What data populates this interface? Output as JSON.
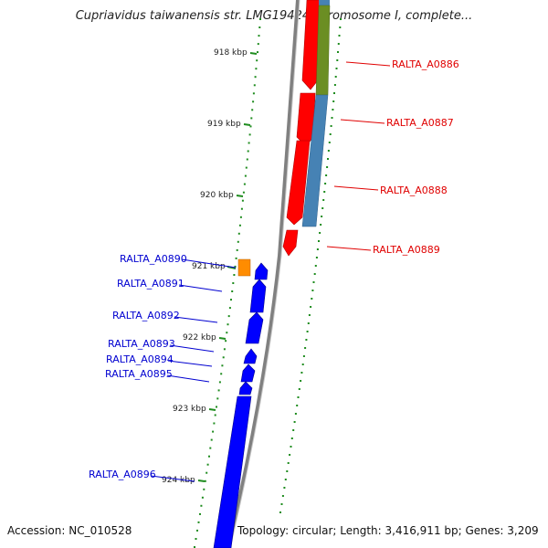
{
  "header": {
    "title": "Cupriavidus taiwanensis str. LMG19424 chromosome I, complete..."
  },
  "footer": {
    "accession": "Accession: NC_010528",
    "topology": "Topology: circular; Length: 3,416,911 bp; Genes: 3,209"
  },
  "map": {
    "ticks": [
      "918 kbp",
      "919 kbp",
      "920 kbp",
      "921 kbp",
      "922 kbp",
      "923 kbp",
      "924 kbp"
    ],
    "forward_genes": [
      "RALTA_A0886",
      "RALTA_A0887",
      "RALTA_A0888",
      "RALTA_A0889"
    ],
    "reverse_genes": [
      "RALTA_A0890",
      "RALTA_A0891",
      "RALTA_A0892",
      "RALTA_A0893",
      "RALTA_A0894",
      "RALTA_A0895",
      "RALTA_A0896"
    ]
  },
  "colors": {
    "forward_cds": "#ff0000",
    "reverse_cds": "#0000ff",
    "cog_green": "#6b8e23",
    "cog_blue": "#4682b4",
    "cog_orange": "#ff8c00",
    "gc_skew_dots": "#1e8c1e",
    "backbone": "#808080",
    "forward_label": "#e00000",
    "reverse_label": "#0000d0"
  }
}
